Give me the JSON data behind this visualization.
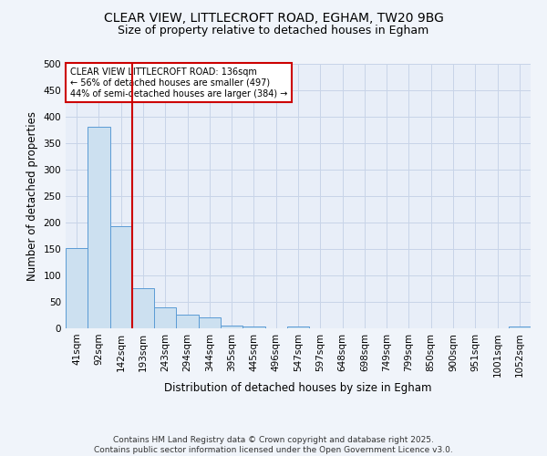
{
  "title_line1": "CLEAR VIEW, LITTLECROFT ROAD, EGHAM, TW20 9BG",
  "title_line2": "Size of property relative to detached houses in Egham",
  "xlabel": "Distribution of detached houses by size in Egham",
  "ylabel": "Number of detached properties",
  "categories": [
    "41sqm",
    "92sqm",
    "142sqm",
    "193sqm",
    "243sqm",
    "294sqm",
    "344sqm",
    "395sqm",
    "445sqm",
    "496sqm",
    "547sqm",
    "597sqm",
    "648sqm",
    "698sqm",
    "749sqm",
    "799sqm",
    "850sqm",
    "900sqm",
    "951sqm",
    "1001sqm",
    "1052sqm"
  ],
  "values": [
    152,
    381,
    193,
    76,
    39,
    26,
    20,
    6,
    4,
    0,
    3,
    0,
    0,
    0,
    0,
    0,
    0,
    0,
    0,
    0,
    4
  ],
  "bar_color": "#cce0f0",
  "bar_edge_color": "#5b9bd5",
  "red_line_x": 2,
  "red_line_color": "#cc0000",
  "annotation_box_text": "CLEAR VIEW LITTLECROFT ROAD: 136sqm\n← 56% of detached houses are smaller (497)\n44% of semi-detached houses are larger (384) →",
  "background_color": "#e8eef8",
  "grid_color": "#c8d4e8",
  "ylim": [
    0,
    500
  ],
  "yticks": [
    0,
    50,
    100,
    150,
    200,
    250,
    300,
    350,
    400,
    450,
    500
  ],
  "footer_line1": "Contains HM Land Registry data © Crown copyright and database right 2025.",
  "footer_line2": "Contains public sector information licensed under the Open Government Licence v3.0.",
  "title_fontsize": 10,
  "subtitle_fontsize": 9,
  "axis_label_fontsize": 8.5,
  "tick_fontsize": 7.5,
  "annotation_fontsize": 7,
  "footer_fontsize": 6.5
}
